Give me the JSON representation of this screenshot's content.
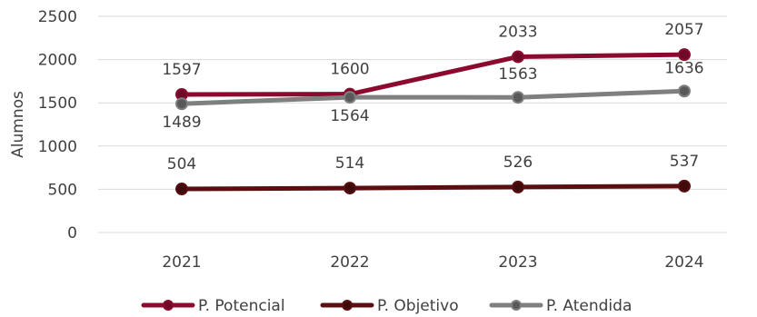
{
  "chart_data": {
    "type": "line",
    "title": "",
    "xlabel": "",
    "ylabel": "Alumnos",
    "categories": [
      "2021",
      "2022",
      "2023",
      "2024"
    ],
    "ylim": [
      0,
      2500
    ],
    "yticks": [
      0,
      500,
      1000,
      1500,
      2000,
      2500
    ],
    "grid": true,
    "legend_position": "bottom",
    "series": [
      {
        "name": "P. Potencial",
        "values": [
          1597,
          1600,
          2033,
          2057
        ],
        "color": "#8b0a2e",
        "marker_color": "#6e0a27"
      },
      {
        "name": "P. Objetivo",
        "values": [
          504,
          514,
          526,
          537
        ],
        "color": "#5a0e10",
        "marker_color": "#3f0a0b"
      },
      {
        "name": "P. Atendida",
        "values": [
          1489,
          1564,
          1563,
          1636
        ],
        "color": "#7f7f7f",
        "marker_color": "#595959"
      }
    ]
  }
}
